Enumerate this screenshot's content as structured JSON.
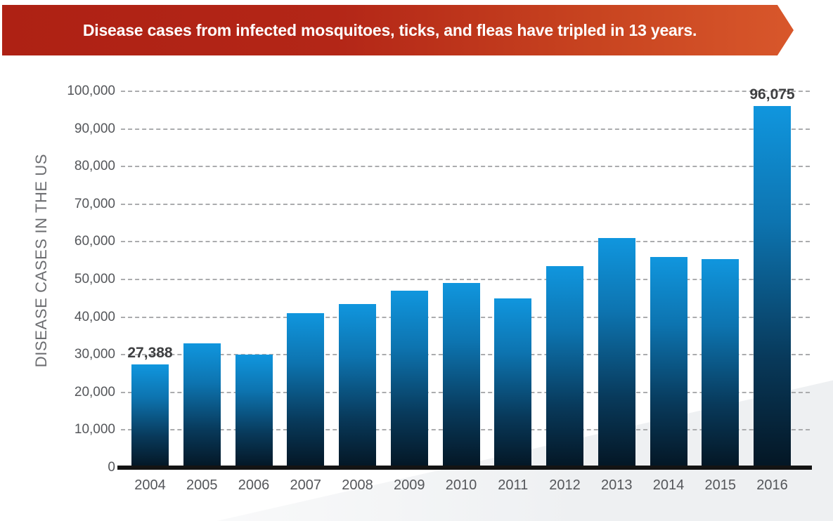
{
  "banner": {
    "text": "Disease cases from infected mosquitoes, ticks, and fleas have tripled in 13 years.",
    "color_left": "#ae2114",
    "color_right": "#d8572b",
    "text_color": "#ffffff"
  },
  "chart_data": {
    "type": "bar",
    "title": "Disease cases from infected mosquitoes, ticks, and fleas have tripled in 13 years.",
    "categories": [
      "2004",
      "2005",
      "2006",
      "2007",
      "2008",
      "2009",
      "2010",
      "2011",
      "2012",
      "2013",
      "2014",
      "2015",
      "2016"
    ],
    "values": [
      27388,
      33000,
      30000,
      41000,
      43500,
      47000,
      49000,
      45000,
      53500,
      61000,
      56000,
      55500,
      96075
    ],
    "xlabel": "",
    "ylabel": "DISEASE CASES IN THE US",
    "ylim": [
      0,
      100000
    ],
    "ytick_interval": 10000,
    "ytick_labels": [
      "0",
      "10,000",
      "20,000",
      "30,000",
      "40,000",
      "50,000",
      "60,000",
      "70,000",
      "80,000",
      "90,000",
      "100,000"
    ],
    "grid": "horizontal-dashed",
    "legend": "none",
    "annotations": [
      {
        "category": "2004",
        "text": "27,388"
      },
      {
        "category": "2016",
        "text": "96,075"
      }
    ],
    "colors": {
      "bar_top": "#1096de",
      "bar_bottom": "#041624",
      "gridline": "#abacae",
      "axis": "#141414",
      "tick_label": "#54565a",
      "annotation": "#3e3f41",
      "y_title": "#6c6d70"
    }
  }
}
